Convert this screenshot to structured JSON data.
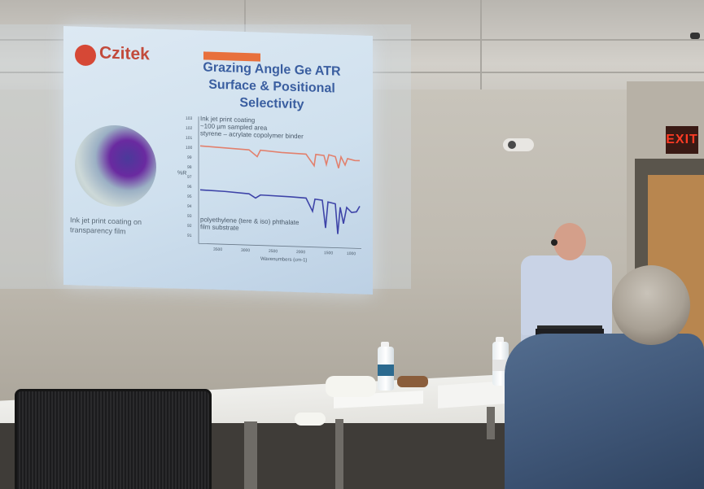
{
  "slide": {
    "logo_text": "Czitek",
    "title": "Grazing Angle Ge ATR Surface & Positional Selectivity",
    "image_caption": "Ink jet print coating on transparency film",
    "note_top_line1": "Ink jet print coating",
    "note_top_line2": "~100 µm sampled area",
    "note_top_line3": "styrene – acrylate copolymer binder",
    "note_bottom_line1": "polyethylene (tere & iso) phthalate",
    "note_bottom_line2": "film substrate",
    "ylabel": "%R",
    "xlabel": "Wavenumbers (cm-1)",
    "yticks": [
      "103",
      "102",
      "101",
      "100",
      "99",
      "98",
      "97",
      "96",
      "95",
      "94",
      "93",
      "92",
      "91"
    ],
    "xticks": [
      "3500",
      "3000",
      "2500",
      "2000",
      "1500",
      "1000"
    ],
    "colors": {
      "top_spectrum": "#e2806d",
      "bottom_spectrum": "#3e44a8",
      "title": "#3a5ea0",
      "logo": "#c24a3b"
    }
  },
  "exit_sign": "EXIT"
}
